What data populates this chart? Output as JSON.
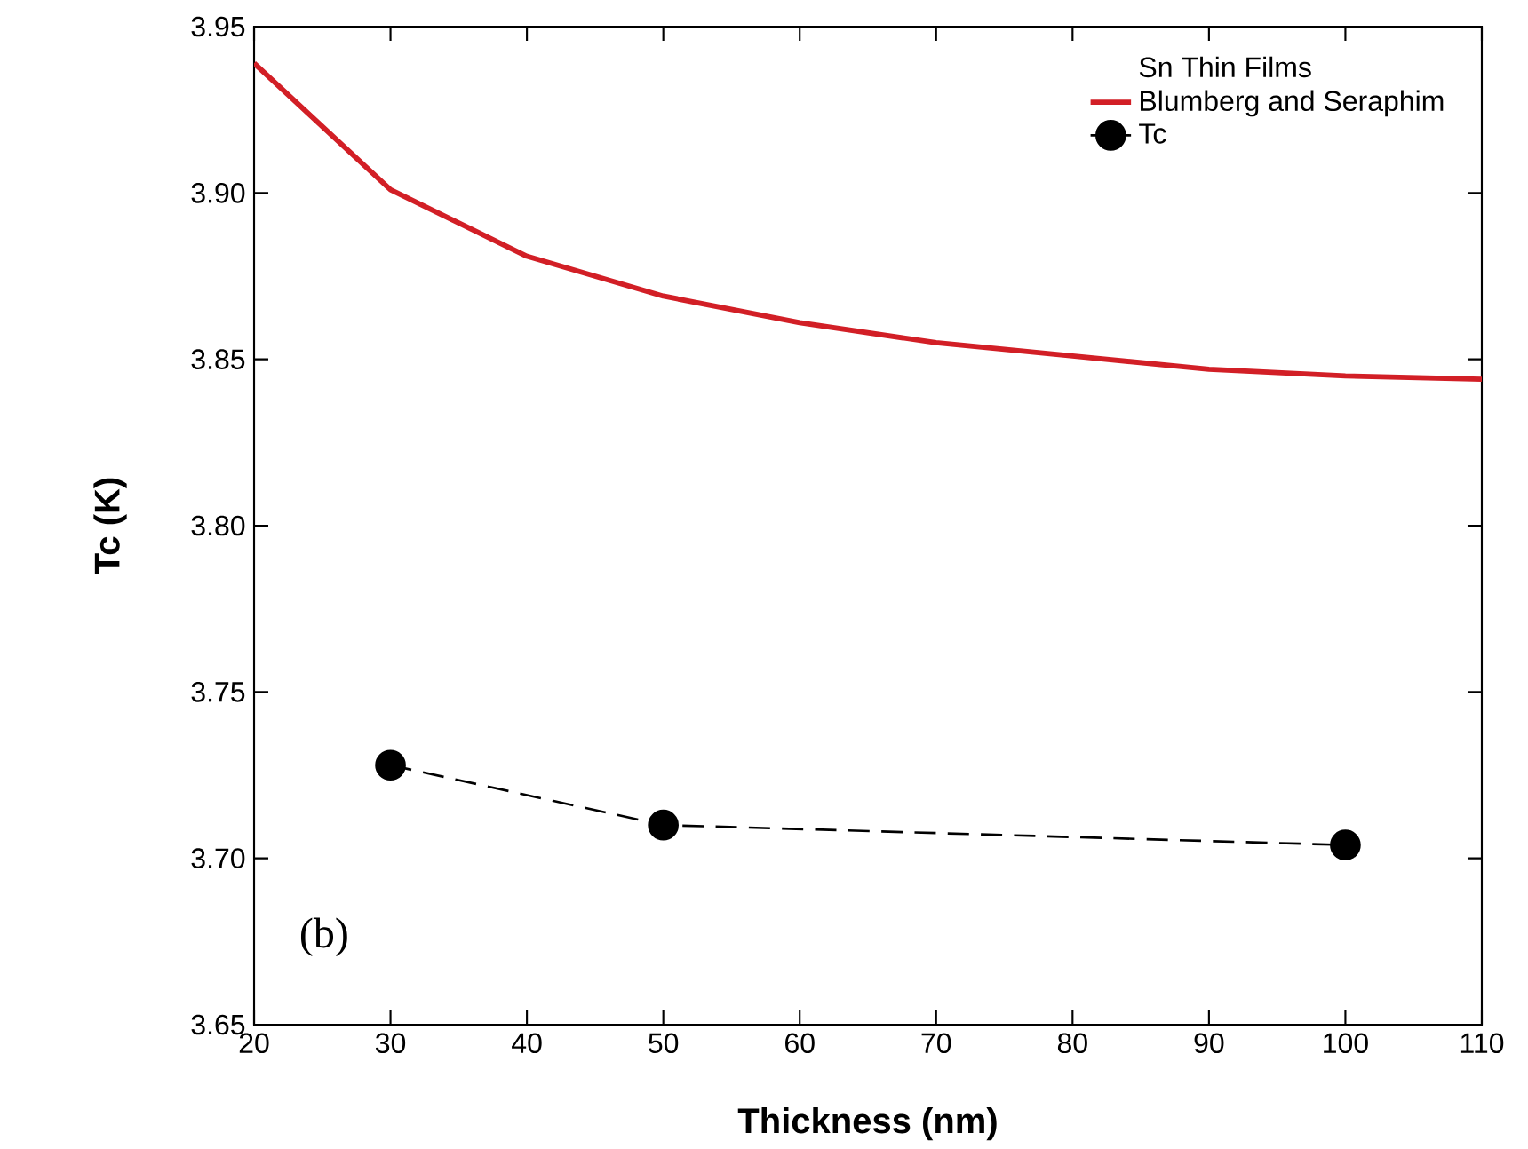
{
  "chart_data": {
    "type": "line",
    "xlabel": "Thickness (nm)",
    "ylabel": "Tc (K)",
    "legend_title": "Sn Thin Films",
    "legend": "top right",
    "grid": false,
    "xlim": [
      20,
      110
    ],
    "xticks": [
      20,
      30,
      40,
      50,
      60,
      70,
      80,
      90,
      100,
      110
    ],
    "ylim": [
      3.65,
      3.95
    ],
    "yticks": [
      3.65,
      {
        "value": 3.7,
        "label": "3.70"
      },
      3.75,
      {
        "value": 3.8,
        "label": "3.80"
      },
      3.85,
      {
        "value": 3.9,
        "label": "3.90"
      },
      3.95
    ],
    "series": [
      {
        "name": "Blumberg and Seraphim",
        "color": "#d21f26",
        "x": [
          20,
          30,
          40,
          50,
          60,
          70,
          80,
          90,
          100,
          110
        ],
        "values": [
          3.939,
          3.901,
          3.881,
          3.869,
          3.861,
          3.855,
          3.851,
          3.847,
          3.845,
          3.844
        ],
        "line_style": "solid",
        "marker": "none"
      },
      {
        "name": "Tc",
        "color": "#000000",
        "x": [
          30,
          50,
          100
        ],
        "values": [
          3.728,
          3.71,
          3.704
        ],
        "line_style": "dashed",
        "marker": "circle"
      }
    ],
    "annotations": [
      "(b)"
    ]
  }
}
